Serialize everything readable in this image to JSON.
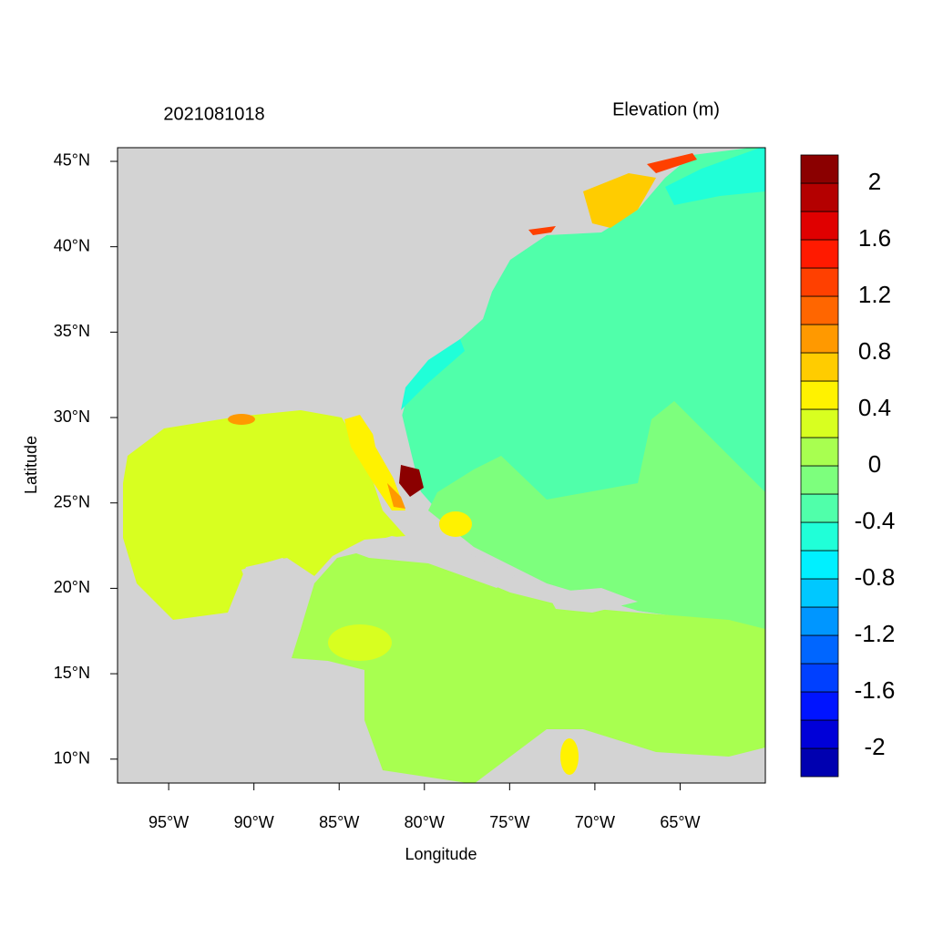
{
  "chart_data": {
    "type": "contour-map",
    "title": "2021081018",
    "x_label": "Longitude",
    "y_label": "Latitude",
    "xlim": [
      -98,
      -60
    ],
    "ylim": [
      8.6,
      45.8
    ],
    "xticks": [
      {
        "value": -95,
        "label": "95°W"
      },
      {
        "value": -90,
        "label": "90°W"
      },
      {
        "value": -85,
        "label": "85°W"
      },
      {
        "value": -80,
        "label": "80°W"
      },
      {
        "value": -75,
        "label": "75°W"
      },
      {
        "value": -70,
        "label": "70°W"
      },
      {
        "value": -65,
        "label": "65°W"
      }
    ],
    "yticks": [
      {
        "value": 10,
        "label": "10°N"
      },
      {
        "value": 15,
        "label": "15°N"
      },
      {
        "value": 20,
        "label": "20°N"
      },
      {
        "value": 25,
        "label": "25°N"
      },
      {
        "value": 30,
        "label": "30°N"
      },
      {
        "value": 35,
        "label": "35°N"
      },
      {
        "value": 40,
        "label": "40°N"
      },
      {
        "value": 45,
        "label": "45°N"
      }
    ],
    "colorbar": {
      "label": "Elevation (m)",
      "levels": [
        -2.2,
        -2.0,
        -1.8,
        -1.6,
        -1.4,
        -1.2,
        -1.0,
        -0.8,
        -0.6,
        -0.4,
        -0.2,
        0,
        0.2,
        0.4,
        0.6,
        0.8,
        1.0,
        1.2,
        1.4,
        1.6,
        1.8,
        2.0,
        2.2
      ],
      "colors": [
        "#0000b0",
        "#0000d8",
        "#0014ff",
        "#0040ff",
        "#0066ff",
        "#0096ff",
        "#00c8ff",
        "#00f0ff",
        "#20ffd8",
        "#50ffaa",
        "#7dff7d",
        "#a8ff50",
        "#d8ff20",
        "#fff200",
        "#ffcc00",
        "#ff9900",
        "#ff6600",
        "#ff4000",
        "#ff1a00",
        "#e00000",
        "#b40000",
        "#8b0000"
      ],
      "ticks": [
        2,
        1.6,
        1.2,
        0.8,
        0.4,
        0,
        -0.4,
        -0.8,
        -1.2,
        -1.6,
        -2
      ]
    }
  }
}
